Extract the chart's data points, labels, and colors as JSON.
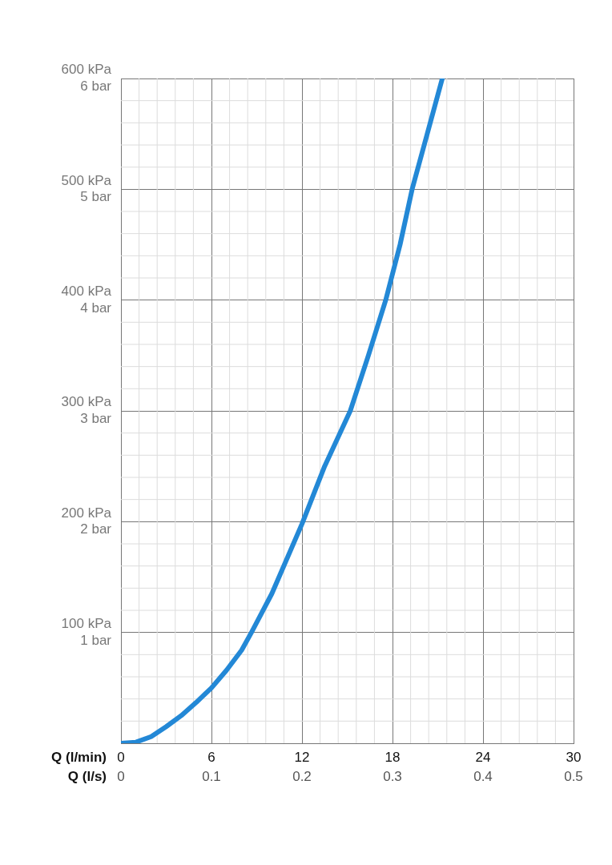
{
  "chart_data": {
    "type": "line",
    "xlabel": "Q (l/min)",
    "x2label": "Q (l/s)",
    "x": [
      0,
      1,
      2,
      3,
      4,
      5,
      6,
      7,
      8,
      8.65,
      10,
      12,
      13.5,
      15.2,
      16.4,
      17.55,
      18.5,
      19.3,
      20.3,
      21.3
    ],
    "series": [
      {
        "color": "#2388d6",
        "values": [
          0,
          1,
          6,
          15,
          25,
          37,
          50,
          66,
          84,
          100,
          135,
          198,
          250,
          300,
          350,
          400,
          450,
          500,
          550,
          600
        ]
      }
    ],
    "xlim": [
      0,
      30
    ],
    "ylim": [
      0,
      600
    ],
    "x2lim": [
      0,
      0.5
    ],
    "y2lim": [
      0,
      6
    ],
    "xticks": [
      0,
      6,
      12,
      18,
      24,
      30
    ],
    "x2ticks": [
      0,
      0.1,
      0.2,
      0.3,
      0.4,
      0.5
    ],
    "yticks": [
      {
        "value": 0,
        "label": null
      },
      {
        "value": 100,
        "label": "100 kPa"
      },
      {
        "value": 200,
        "label": "200 kPa"
      },
      {
        "value": 300,
        "label": "300 kPa"
      },
      {
        "value": 400,
        "label": "400 kPa"
      },
      {
        "value": 500,
        "label": "500 kPa"
      },
      {
        "value": 600,
        "label": "600 kPa"
      }
    ],
    "y2ticks": [
      {
        "value": 0,
        "label": null
      },
      {
        "value": 1,
        "label": "1 bar"
      },
      {
        "value": 2,
        "label": "2 bar"
      },
      {
        "value": 3,
        "label": "3 bar"
      },
      {
        "value": 4,
        "label": "4 bar"
      },
      {
        "value": 5,
        "label": "5 bar"
      },
      {
        "value": 6,
        "label": "6 bar"
      }
    ],
    "grid": true,
    "legend": false,
    "marker": "none",
    "line_style": "solid"
  }
}
